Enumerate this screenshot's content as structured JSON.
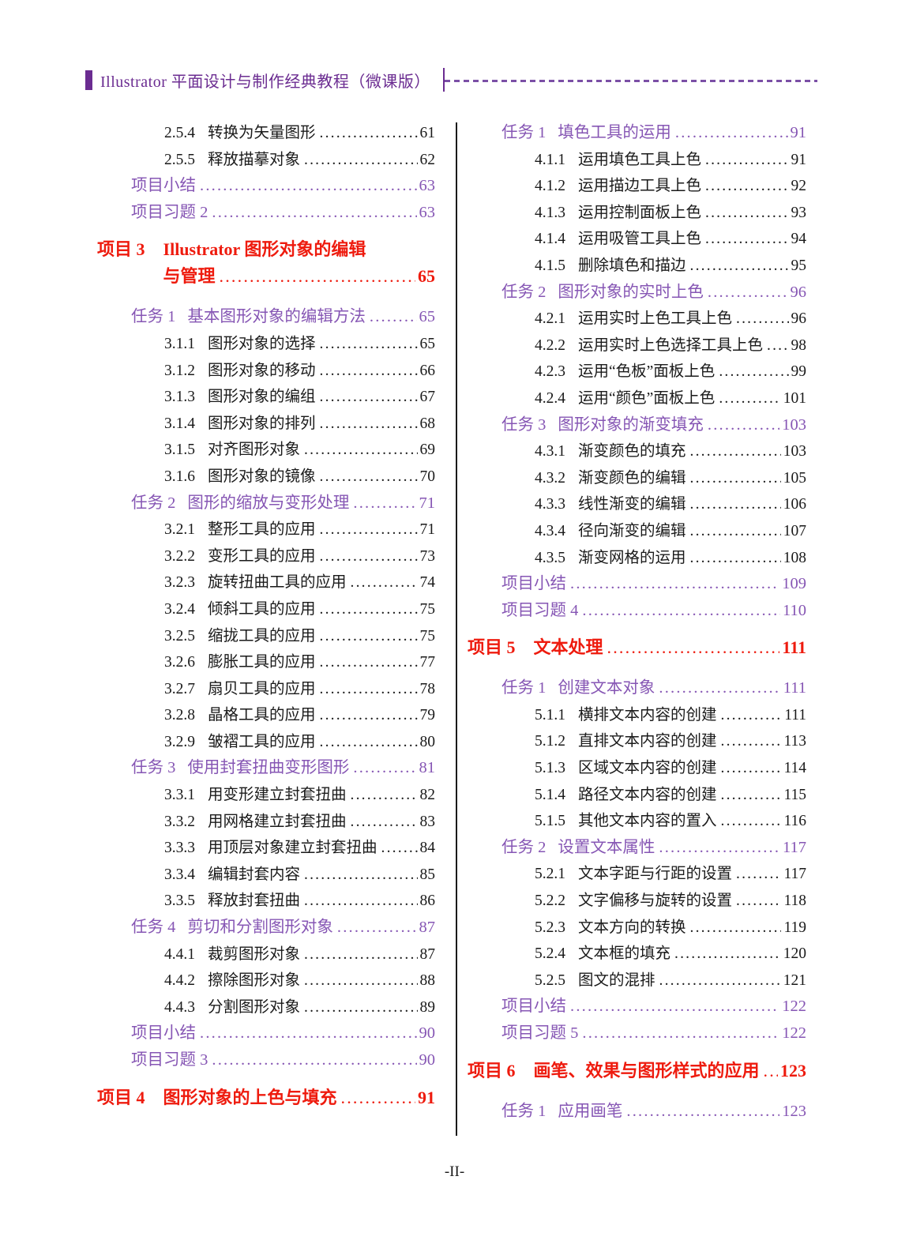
{
  "header": {
    "title": "Illustrator 平面设计与制作经典教程（微课版）"
  },
  "footer": {
    "text": "-II-"
  },
  "colors": {
    "header_purple": "#6B2C91",
    "dash_purple": "#7B4FA6",
    "task_purple": "#8656B4",
    "chapter_red": "#EE1B0E",
    "body_black": "#1a1a1a"
  },
  "toc": {
    "left": [
      {
        "type": "section",
        "num": "2.5.4",
        "label": "转换为矢量图形",
        "page": "61"
      },
      {
        "type": "section",
        "num": "2.5.5",
        "label": "释放描摹对象",
        "page": "62"
      },
      {
        "type": "summary",
        "label": "项目小结",
        "page": "63"
      },
      {
        "type": "summary",
        "label": "项目习题 2",
        "page": "63"
      },
      {
        "type": "chapter",
        "num": "项目 3",
        "label": "Illustrator 图形对象的编辑",
        "label2": "与管理",
        "page": "65"
      },
      {
        "type": "task",
        "num": "任务 1",
        "label": "基本图形对象的编辑方法",
        "page": "65"
      },
      {
        "type": "section",
        "num": "3.1.1",
        "label": "图形对象的选择",
        "page": "65"
      },
      {
        "type": "section",
        "num": "3.1.2",
        "label": "图形对象的移动",
        "page": "66"
      },
      {
        "type": "section",
        "num": "3.1.3",
        "label": "图形对象的编组",
        "page": "67"
      },
      {
        "type": "section",
        "num": "3.1.4",
        "label": "图形对象的排列",
        "page": "68"
      },
      {
        "type": "section",
        "num": "3.1.5",
        "label": "对齐图形对象",
        "page": "69"
      },
      {
        "type": "section",
        "num": "3.1.6",
        "label": "图形对象的镜像",
        "page": "70"
      },
      {
        "type": "task",
        "num": "任务 2",
        "label": "图形的缩放与变形处理",
        "page": "71"
      },
      {
        "type": "section",
        "num": "3.2.1",
        "label": "整形工具的应用",
        "page": "71"
      },
      {
        "type": "section",
        "num": "3.2.2",
        "label": "变形工具的应用",
        "page": "73"
      },
      {
        "type": "section",
        "num": "3.2.3",
        "label": "旋转扭曲工具的应用",
        "page": "74"
      },
      {
        "type": "section",
        "num": "3.2.4",
        "label": "倾斜工具的应用",
        "page": "75"
      },
      {
        "type": "section",
        "num": "3.2.5",
        "label": "缩拢工具的应用",
        "page": "75"
      },
      {
        "type": "section",
        "num": "3.2.6",
        "label": "膨胀工具的应用",
        "page": "77"
      },
      {
        "type": "section",
        "num": "3.2.7",
        "label": "扇贝工具的应用",
        "page": "78"
      },
      {
        "type": "section",
        "num": "3.2.8",
        "label": "晶格工具的应用",
        "page": "79"
      },
      {
        "type": "section",
        "num": "3.2.9",
        "label": "皱褶工具的应用",
        "page": "80"
      },
      {
        "type": "task",
        "num": "任务 3",
        "label": "使用封套扭曲变形图形",
        "page": "81"
      },
      {
        "type": "section",
        "num": "3.3.1",
        "label": "用变形建立封套扭曲",
        "page": "82"
      },
      {
        "type": "section",
        "num": "3.3.2",
        "label": "用网格建立封套扭曲",
        "page": "83"
      },
      {
        "type": "section",
        "num": "3.3.3",
        "label": "用顶层对象建立封套扭曲",
        "page": "84"
      },
      {
        "type": "section",
        "num": "3.3.4",
        "label": "编辑封套内容",
        "page": "85"
      },
      {
        "type": "section",
        "num": "3.3.5",
        "label": "释放封套扭曲",
        "page": "86"
      },
      {
        "type": "task",
        "num": "任务 4",
        "label": "剪切和分割图形对象",
        "page": "87"
      },
      {
        "type": "section",
        "num": "4.4.1",
        "label": "裁剪图形对象",
        "page": "87"
      },
      {
        "type": "section",
        "num": "4.4.2",
        "label": "擦除图形对象",
        "page": "88"
      },
      {
        "type": "section",
        "num": "4.4.3",
        "label": "分割图形对象",
        "page": "89"
      },
      {
        "type": "summary",
        "label": "项目小结",
        "page": "90"
      },
      {
        "type": "summary",
        "label": "项目习题 3",
        "page": "90"
      },
      {
        "type": "chapter",
        "num": "项目 4",
        "label": "图形对象的上色与填充",
        "page": "91"
      }
    ],
    "right": [
      {
        "type": "task",
        "num": "任务 1",
        "label": "填色工具的运用",
        "page": "91"
      },
      {
        "type": "section",
        "num": "4.1.1",
        "label": "运用填色工具上色",
        "page": "91"
      },
      {
        "type": "section",
        "num": "4.1.2",
        "label": "运用描边工具上色",
        "page": "92"
      },
      {
        "type": "section",
        "num": "4.1.3",
        "label": "运用控制面板上色",
        "page": "93"
      },
      {
        "type": "section",
        "num": "4.1.4",
        "label": "运用吸管工具上色",
        "page": "94"
      },
      {
        "type": "section",
        "num": "4.1.5",
        "label": "删除填色和描边",
        "page": "95"
      },
      {
        "type": "task",
        "num": "任务 2",
        "label": "图形对象的实时上色",
        "page": "96"
      },
      {
        "type": "section",
        "num": "4.2.1",
        "label": "运用实时上色工具上色",
        "page": "96"
      },
      {
        "type": "section",
        "num": "4.2.2",
        "label": "运用实时上色选择工具上色",
        "page": "98"
      },
      {
        "type": "section",
        "num": "4.2.3",
        "label": "运用“色板”面板上色",
        "page": "99"
      },
      {
        "type": "section",
        "num": "4.2.4",
        "label": "运用“颜色”面板上色",
        "page": "101"
      },
      {
        "type": "task",
        "num": "任务 3",
        "label": "图形对象的渐变填充",
        "page": "103"
      },
      {
        "type": "section",
        "num": "4.3.1",
        "label": "渐变颜色的填充",
        "page": "103"
      },
      {
        "type": "section",
        "num": "4.3.2",
        "label": "渐变颜色的编辑",
        "page": "105"
      },
      {
        "type": "section",
        "num": "4.3.3",
        "label": "线性渐变的编辑",
        "page": "106"
      },
      {
        "type": "section",
        "num": "4.3.4",
        "label": "径向渐变的编辑",
        "page": "107"
      },
      {
        "type": "section",
        "num": "4.3.5",
        "label": "渐变网格的运用",
        "page": "108"
      },
      {
        "type": "summary",
        "label": "项目小结",
        "page": "109"
      },
      {
        "type": "summary",
        "label": "项目习题 4",
        "page": "110"
      },
      {
        "type": "chapter",
        "num": "项目 5",
        "label": "文本处理",
        "page": "111"
      },
      {
        "type": "task",
        "num": "任务 1",
        "label": "创建文本对象",
        "page": "111"
      },
      {
        "type": "section",
        "num": "5.1.1",
        "label": "横排文本内容的创建",
        "page": "111"
      },
      {
        "type": "section",
        "num": "5.1.2",
        "label": "直排文本内容的创建",
        "page": "113"
      },
      {
        "type": "section",
        "num": "5.1.3",
        "label": "区域文本内容的创建",
        "page": "114"
      },
      {
        "type": "section",
        "num": "5.1.4",
        "label": "路径文本内容的创建",
        "page": "115"
      },
      {
        "type": "section",
        "num": "5.1.5",
        "label": "其他文本内容的置入",
        "page": "116"
      },
      {
        "type": "task",
        "num": "任务 2",
        "label": "设置文本属性",
        "page": "117"
      },
      {
        "type": "section",
        "num": "5.2.1",
        "label": "文本字距与行距的设置",
        "page": "117"
      },
      {
        "type": "section",
        "num": "5.2.2",
        "label": "文字偏移与旋转的设置",
        "page": "118"
      },
      {
        "type": "section",
        "num": "5.2.3",
        "label": "文本方向的转换",
        "page": "119"
      },
      {
        "type": "section",
        "num": "5.2.4",
        "label": "文本框的填充",
        "page": "120"
      },
      {
        "type": "section",
        "num": "5.2.5",
        "label": "图文的混排",
        "page": "121"
      },
      {
        "type": "summary",
        "label": "项目小结",
        "page": "122"
      },
      {
        "type": "summary",
        "label": "项目习题 5",
        "page": "122"
      },
      {
        "type": "chapter",
        "num": "项目 6",
        "label": "画笔、效果与图形样式的应用",
        "page": "123"
      },
      {
        "type": "task",
        "num": "任务 1",
        "label": "应用画笔",
        "page": "123"
      }
    ]
  }
}
